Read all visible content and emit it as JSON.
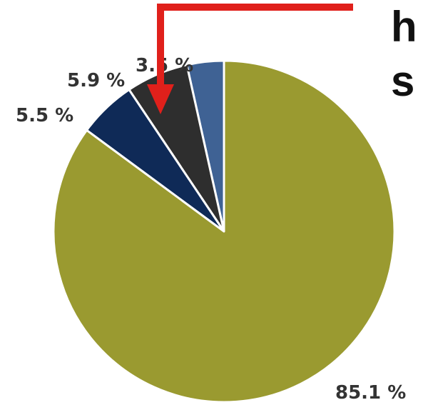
{
  "chart_data": {
    "type": "pie",
    "title": "",
    "start_angle_deg": 0,
    "direction": "counterclockwise",
    "slices": [
      {
        "label": "3.5 %",
        "value": 3.5,
        "color": "#3f6294"
      },
      {
        "label": "5.9 %",
        "value": 5.9,
        "color": "#2e2e2e"
      },
      {
        "label": "5.5 %",
        "value": 5.5,
        "color": "#0f2a57"
      },
      {
        "label": "85.1 %",
        "value": 85.1,
        "color": "#9a9a30"
      }
    ]
  },
  "annotation": {
    "color": "#e0201b",
    "cut_text_line1": "h",
    "cut_text_line2": "s"
  }
}
